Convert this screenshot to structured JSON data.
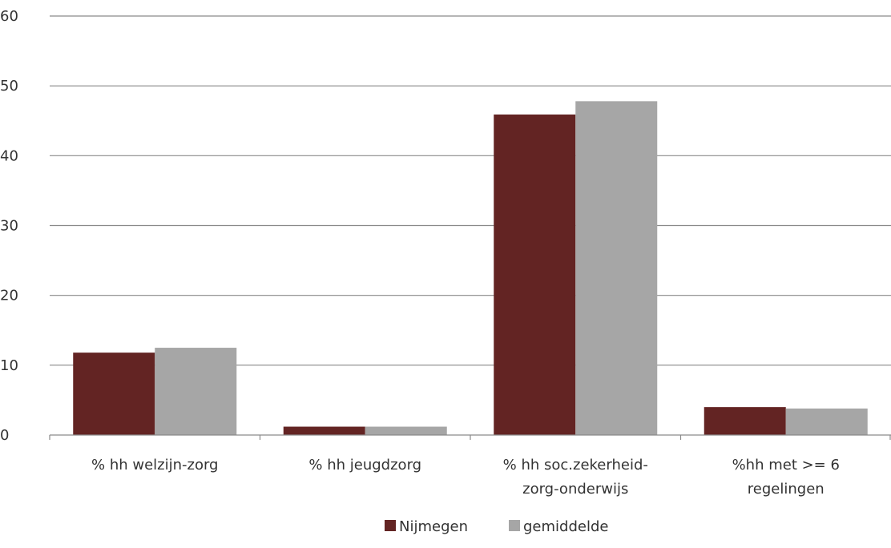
{
  "chart_data": {
    "type": "bar",
    "title": "",
    "xlabel": "",
    "ylabel": "",
    "ylim": [
      0,
      60
    ],
    "yticks": [
      "0",
      "10",
      "20",
      "30",
      "40",
      "50",
      "60"
    ],
    "grid": true,
    "legend_position": "bottom",
    "categories": [
      [
        "% hh welzijn-zorg"
      ],
      [
        "% hh jeugdzorg"
      ],
      [
        "% hh soc.zekerheid-",
        "zorg-onderwijs"
      ],
      [
        "%hh met >= 6",
        "regelingen"
      ]
    ],
    "series": [
      {
        "name": "Nijmegen",
        "color": "#632423",
        "values": [
          11.8,
          1.2,
          45.9,
          4.0
        ]
      },
      {
        "name": "gemiddelde",
        "color": "#a6a6a6",
        "values": [
          12.5,
          1.2,
          47.8,
          3.8
        ]
      }
    ]
  }
}
